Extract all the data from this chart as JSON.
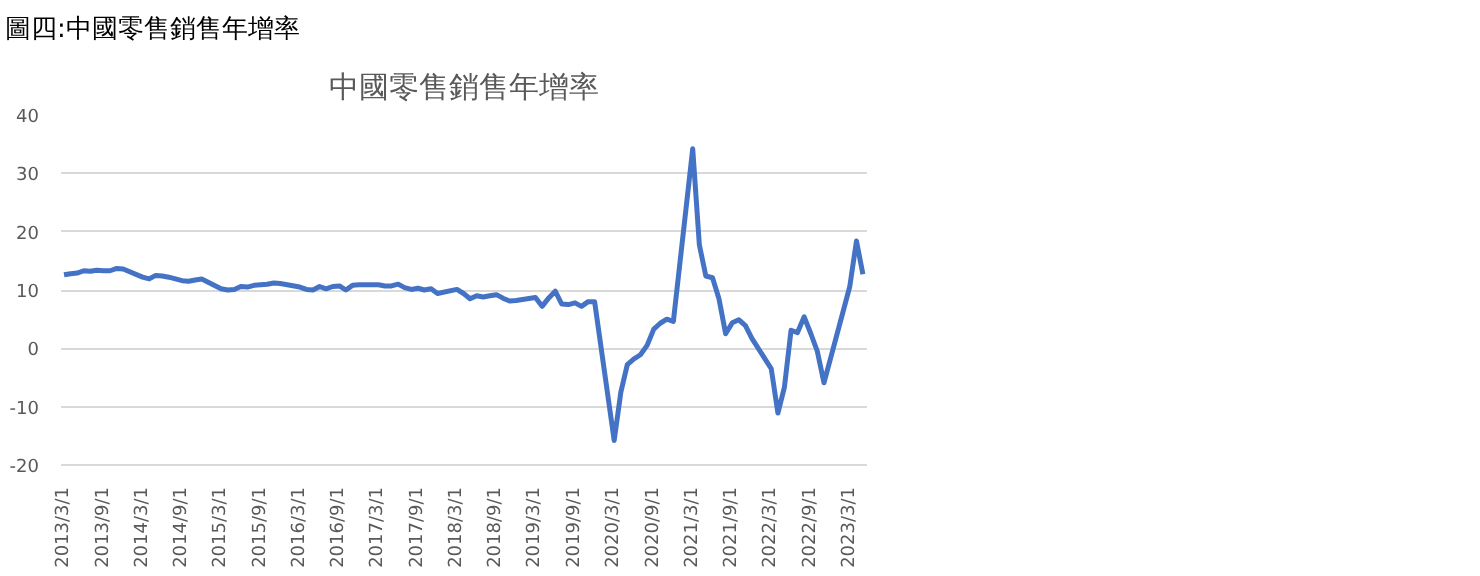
{
  "chart_data": {
    "type": "line",
    "title": "中國零售銷售年增率",
    "annotations": [
      "圖四:中國零售銷售年增率"
    ],
    "x": [
      "2013-03",
      "2013-04",
      "2013-05",
      "2013-06",
      "2013-07",
      "2013-08",
      "2013-09",
      "2013-10",
      "2013-11",
      "2013-12",
      "2014-03",
      "2014-04",
      "2014-05",
      "2014-06",
      "2014-07",
      "2014-08",
      "2014-09",
      "2014-10",
      "2014-11",
      "2014-12",
      "2015-03",
      "2015-04",
      "2015-05",
      "2015-06",
      "2015-07",
      "2015-08",
      "2015-09",
      "2015-10",
      "2015-11",
      "2015-12",
      "2016-03",
      "2016-04",
      "2016-05",
      "2016-06",
      "2016-07",
      "2016-08",
      "2016-09",
      "2016-10",
      "2016-11",
      "2016-12",
      "2017-03",
      "2017-04",
      "2017-05",
      "2017-06",
      "2017-07",
      "2017-08",
      "2017-09",
      "2017-10",
      "2017-11",
      "2017-12",
      "2018-03",
      "2018-04",
      "2018-05",
      "2018-06",
      "2018-07",
      "2018-08",
      "2018-09",
      "2018-10",
      "2018-11",
      "2018-12",
      "2019-03",
      "2019-04",
      "2019-05",
      "2019-06",
      "2019-07",
      "2019-08",
      "2019-09",
      "2019-10",
      "2019-11",
      "2019-12",
      "2020-03",
      "2020-04",
      "2020-05",
      "2020-06",
      "2020-07",
      "2020-08",
      "2020-09",
      "2020-10",
      "2020-11",
      "2020-12",
      "2021-03",
      "2021-04",
      "2021-05",
      "2021-06",
      "2021-07",
      "2021-08",
      "2021-09",
      "2021-10",
      "2021-11",
      "2021-12",
      "2022-03",
      "2022-04",
      "2022-05",
      "2022-06",
      "2022-07",
      "2022-08",
      "2022-09",
      "2022-10",
      "2022-11",
      "2022-12",
      "2023-03",
      "2023-04",
      "2023-05"
    ],
    "series": [
      {
        "color": "#4472c4",
        "values": [
          12.6,
          12.8,
          12.9,
          13.3,
          13.2,
          13.4,
          13.3,
          13.3,
          13.7,
          13.6,
          12.2,
          11.9,
          12.5,
          12.4,
          12.2,
          11.9,
          11.6,
          11.5,
          11.7,
          11.9,
          10.2,
          10.0,
          10.1,
          10.6,
          10.5,
          10.8,
          10.9,
          11.0,
          11.2,
          11.1,
          10.5,
          10.1,
          10.0,
          10.6,
          10.2,
          10.6,
          10.7,
          10.0,
          10.8,
          10.9,
          10.9,
          10.7,
          10.7,
          11.0,
          10.4,
          10.1,
          10.3,
          10.0,
          10.2,
          9.4,
          10.1,
          9.4,
          8.5,
          9.0,
          8.8,
          9.0,
          9.2,
          8.6,
          8.1,
          8.2,
          8.7,
          7.2,
          8.6,
          9.8,
          7.6,
          7.5,
          7.8,
          7.2,
          8.0,
          8.0,
          -15.8,
          -7.5,
          -2.8,
          -1.8,
          -1.1,
          0.5,
          3.3,
          4.3,
          5.0,
          4.6,
          34.2,
          17.7,
          12.4,
          12.1,
          8.5,
          2.5,
          4.4,
          4.9,
          3.9,
          1.7,
          -3.5,
          -11.1,
          -6.7,
          3.1,
          2.7,
          5.4,
          2.5,
          -0.5,
          -5.9,
          -1.8,
          10.6,
          18.4,
          12.7
        ]
      }
    ],
    "xlim": [
      "2013-02-15",
      "2023-05-20"
    ],
    "xticks": [
      {
        "value": "2013-03-01",
        "label": "2013/3/1"
      },
      {
        "value": "2013-09-01",
        "label": "2013/9/1"
      },
      {
        "value": "2014-03-01",
        "label": "2014/3/1"
      },
      {
        "value": "2014-09-01",
        "label": "2014/9/1"
      },
      {
        "value": "2015-03-01",
        "label": "2015/3/1"
      },
      {
        "value": "2015-09-01",
        "label": "2015/9/1"
      },
      {
        "value": "2016-03-01",
        "label": "2016/3/1"
      },
      {
        "value": "2016-09-01",
        "label": "2016/9/1"
      },
      {
        "value": "2017-03-01",
        "label": "2017/3/1"
      },
      {
        "value": "2017-09-01",
        "label": "2017/9/1"
      },
      {
        "value": "2018-03-01",
        "label": "2018/3/1"
      },
      {
        "value": "2018-09-01",
        "label": "2018/9/1"
      },
      {
        "value": "2019-03-01",
        "label": "2019/3/1"
      },
      {
        "value": "2019-09-01",
        "label": "2019/9/1"
      },
      {
        "value": "2020-03-01",
        "label": "2020/3/1"
      },
      {
        "value": "2020-09-01",
        "label": "2020/9/1"
      },
      {
        "value": "2021-03-01",
        "label": "2021/3/1"
      },
      {
        "value": "2021-09-01",
        "label": "2021/9/1"
      },
      {
        "value": "2022-03-01",
        "label": "2022/3/1"
      },
      {
        "value": "2022-09-01",
        "label": "2022/9/1"
      },
      {
        "value": "2023-03-01",
        "label": "2023/3/1"
      }
    ],
    "ylim": [
      -20,
      40
    ],
    "yticks": [
      -20,
      -10,
      0,
      10,
      20,
      30,
      40
    ],
    "grid": "y",
    "marker": "none",
    "line_style": "solid"
  }
}
